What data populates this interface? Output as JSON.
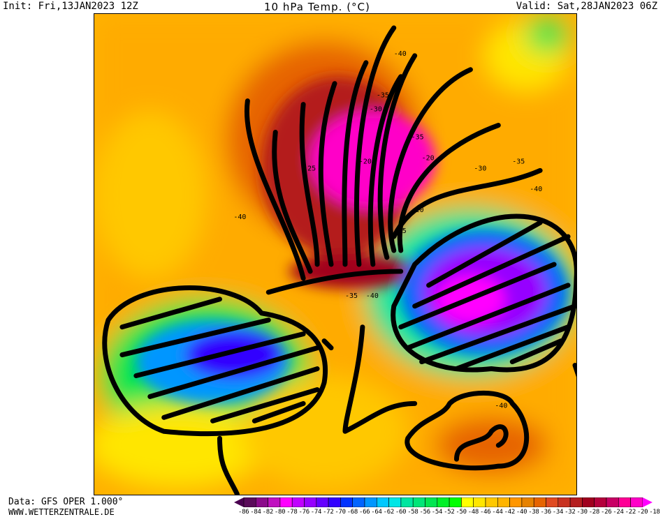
{
  "header": {
    "init": "Init: Fri,13JAN2023 12Z",
    "title": "10 hPa Temp. (°C)",
    "valid": "Valid: Sat,28JAN2023 06Z"
  },
  "footer": {
    "source": "Data: GFS OPER 1.000°",
    "site": "WWW.WETTERZENTRALE.DE"
  },
  "legend": {
    "unit": "°C",
    "labels": [
      "-86",
      "-84",
      "-82",
      "-80",
      "-78",
      "-76",
      "-74",
      "-72",
      "-70",
      "-68",
      "-66",
      "-64",
      "-62",
      "-60",
      "-58",
      "-56",
      "-54",
      "-52",
      "-50",
      "-48",
      "-46",
      "-44",
      "-42",
      "-40",
      "-38",
      "-36",
      "-34",
      "-32",
      "-30",
      "-28",
      "-26",
      "-24",
      "-22",
      "-20",
      "-18"
    ],
    "colors": [
      "#4a0050",
      "#5a0a5a",
      "#8b0a8b",
      "#c010c0",
      "#ff00ff",
      "#c000ff",
      "#9600ff",
      "#6400ff",
      "#3200ff",
      "#0032ff",
      "#0064ff",
      "#0096ff",
      "#00c8ff",
      "#00e6e6",
      "#00e6a0",
      "#00e678",
      "#00e650",
      "#00f028",
      "#00ff00",
      "#ffff00",
      "#ffe600",
      "#ffc800",
      "#ffb400",
      "#ff9600",
      "#e68200",
      "#e66400",
      "#e04a20",
      "#c83220",
      "#b41e1e",
      "#a0001e",
      "#b4003c",
      "#c80064",
      "#ff0096",
      "#ff00c8",
      "#ff00ff"
    ]
  },
  "map": {
    "contour_labels": [
      "-40",
      "-35",
      "-30",
      "-35",
      "-20",
      "-30",
      "-35",
      "-40",
      "-40",
      "-20",
      "-25",
      "-35",
      "-40",
      "-40",
      "-25",
      "-20"
    ]
  }
}
